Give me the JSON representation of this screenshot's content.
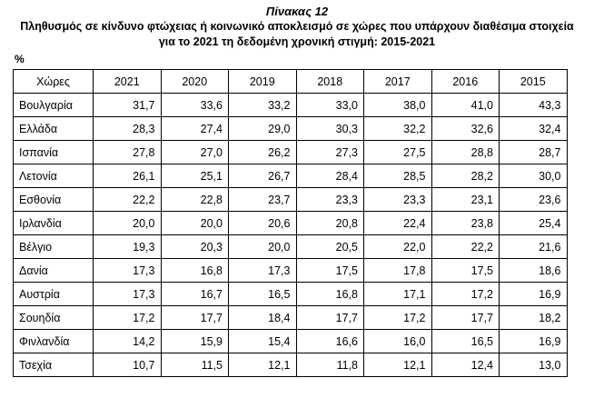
{
  "title": "Πίνακας 12",
  "subtitle_line1": "Πληθυσμός σε κίνδυνο φτώχειας ή κοινωνικό αποκλεισμό σε χώρες που υπάρχουν διαθέσιμα στοιχεία",
  "subtitle_line2": "για το 2021 τη δεδομένη χρονική στιγμή: 2015-2021",
  "unit": "%",
  "table": {
    "headers": [
      "Χώρες",
      "2021",
      "2020",
      "2019",
      "2018",
      "2017",
      "2016",
      "2015"
    ],
    "rows": [
      [
        "Βουλγαρία",
        "31,7",
        "33,6",
        "33,2",
        "33,0",
        "38,0",
        "41,0",
        "43,3"
      ],
      [
        "Ελλάδα",
        "28,3",
        "27,4",
        "29,0",
        "30,3",
        "32,2",
        "32,6",
        "32,4"
      ],
      [
        "Ισπανία",
        "27,8",
        "27,0",
        "26,2",
        "27,3",
        "27,5",
        "28,8",
        "28,7"
      ],
      [
        "Λετονία",
        "26,1",
        "25,1",
        "26,7",
        "28,4",
        "28,5",
        "28,2",
        "30,0"
      ],
      [
        "Εσθονία",
        "22,2",
        "22,8",
        "23,7",
        "23,3",
        "23,3",
        "23,1",
        "23,6"
      ],
      [
        "Ιρλανδία",
        "20,0",
        "20,0",
        "20,6",
        "20,8",
        "22,4",
        "23,8",
        "25,4"
      ],
      [
        "Βέλγιο",
        "19,3",
        "20,3",
        "20,0",
        "20,5",
        "22,0",
        "22,2",
        "21,6"
      ],
      [
        "Δανία",
        "17,3",
        "16,8",
        "17,3",
        "17,5",
        "17,8",
        "17,5",
        "18,6"
      ],
      [
        "Αυστρία",
        "17,3",
        "16,7",
        "16,5",
        "16,8",
        "17,1",
        "17,2",
        "16,9"
      ],
      [
        "Σουηδία",
        "17,2",
        "17,7",
        "18,4",
        "17,7",
        "17,2",
        "17,7",
        "18,2"
      ],
      [
        "Φινλανδία",
        "14,2",
        "15,9",
        "15,4",
        "16,6",
        "16,0",
        "16,5",
        "16,9"
      ],
      [
        "Τσεχία",
        "10,7",
        "11,5",
        "12,1",
        "11,8",
        "12,1",
        "12,4",
        "13,0"
      ]
    ]
  }
}
